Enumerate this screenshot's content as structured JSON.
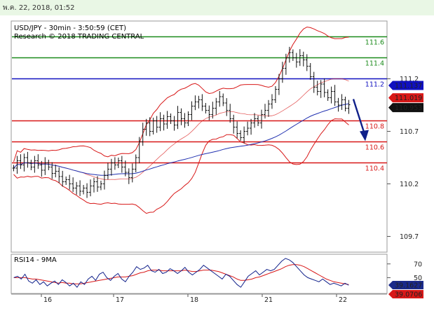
{
  "header": {
    "date_text": "พ.ค. 22, 2018, 01:52"
  },
  "chart_data": {
    "type": "candlestick",
    "title": "USD/JPY - 30min - 3:50:59 (CET)",
    "subtitle": "Research © 2018 TRADING CENTRAL",
    "x_tick_labels": [
      "16",
      "17",
      "18",
      "21",
      "22"
    ],
    "y_axis_ticks": [
      "111.2",
      "110.7",
      "110.2",
      "109.7"
    ],
    "ylim": [
      109.55,
      111.75
    ],
    "levels": [
      {
        "label": "111.6",
        "value": 111.6,
        "color": "#1a8a1a"
      },
      {
        "label": "111.4",
        "value": 111.4,
        "color": "#1a8a1a"
      },
      {
        "label": "111.2",
        "value": 111.2,
        "color": "#1010c0"
      },
      {
        "label": "110.8",
        "value": 110.8,
        "color": "#d81818"
      },
      {
        "label": "110.6",
        "value": 110.6,
        "color": "#d81818"
      },
      {
        "label": "110.4",
        "value": 110.4,
        "color": "#d81818"
      }
    ],
    "price_tags": [
      {
        "text": "111.137",
        "value": 111.137,
        "color": "#1010c0"
      },
      {
        "text": "111.019",
        "value": 111.019,
        "color": "#d81818"
      },
      {
        "text": "110.953",
        "value": 110.953,
        "color": "#111111"
      }
    ],
    "close_series": [
      110.35,
      110.42,
      110.38,
      110.45,
      110.4,
      110.36,
      110.42,
      110.38,
      110.33,
      110.4,
      110.36,
      110.3,
      110.32,
      110.27,
      110.22,
      110.24,
      110.2,
      110.16,
      110.18,
      110.13,
      110.16,
      110.12,
      110.18,
      110.22,
      110.17,
      110.2,
      110.28,
      110.34,
      110.4,
      110.38,
      110.42,
      110.36,
      110.31,
      110.26,
      110.34,
      110.45,
      110.6,
      110.72,
      110.78,
      110.7,
      110.8,
      110.74,
      110.82,
      110.77,
      110.84,
      110.8,
      110.76,
      110.88,
      110.82,
      110.78,
      110.86,
      110.94,
      110.98,
      111.0,
      110.94,
      110.9,
      110.86,
      110.92,
      110.98,
      111.03,
      110.97,
      110.9,
      110.82,
      110.74,
      110.68,
      110.64,
      110.7,
      110.73,
      110.78,
      110.82,
      110.78,
      110.86,
      110.9,
      110.96,
      111.0,
      111.1,
      111.2,
      111.3,
      111.4,
      111.45,
      111.4,
      111.36,
      111.42,
      111.38,
      111.32,
      111.22,
      111.12,
      111.08,
      111.15,
      111.07,
      111.02,
      111.08,
      110.98,
      110.95,
      111.0,
      110.92,
      110.953
    ],
    "rsi": {
      "label": "RSI14 - 9MA",
      "ticks": [
        "70",
        "50"
      ],
      "ylim": [
        28,
        82
      ],
      "values": [
        50,
        52,
        48,
        55,
        45,
        42,
        47,
        40,
        44,
        38,
        42,
        45,
        40,
        47,
        43,
        38,
        42,
        36,
        44,
        40,
        48,
        52,
        46,
        55,
        58,
        50,
        46,
        52,
        56,
        48,
        44,
        52,
        58,
        66,
        62,
        64,
        68,
        60,
        58,
        62,
        56,
        58,
        63,
        60,
        56,
        60,
        65,
        58,
        54,
        58,
        62,
        68,
        64,
        60,
        56,
        52,
        48,
        55,
        52,
        46,
        40,
        36,
        44,
        52,
        56,
        60,
        54,
        58,
        62,
        60,
        62,
        68,
        74,
        78,
        76,
        72,
        66,
        60,
        54,
        50,
        48,
        46,
        44,
        48,
        44,
        40,
        42,
        40,
        38,
        42,
        39
      ],
      "ma_values": [
        50,
        50,
        50,
        50,
        49,
        48,
        48,
        47,
        46,
        45,
        44,
        43,
        42,
        43,
        42,
        42,
        41,
        41,
        41,
        42,
        43,
        44,
        45,
        46,
        47,
        48,
        49,
        50,
        51,
        51,
        51,
        52,
        53,
        55,
        57,
        58,
        60,
        61,
        61,
        61,
        60,
        60,
        60,
        60,
        60,
        60,
        61,
        60,
        59,
        59,
        60,
        61,
        61,
        61,
        60,
        59,
        57,
        55,
        53,
        51,
        48,
        46,
        46,
        47,
        48,
        50,
        51,
        53,
        55,
        57,
        59,
        61,
        63,
        66,
        68,
        69,
        69,
        68,
        66,
        63,
        60,
        57,
        54,
        51,
        48,
        46,
        44,
        43,
        42,
        41,
        40
      ],
      "tags": [
        {
          "text": "39.1627",
          "value": 39.1627,
          "color": "#1a2a8a"
        },
        {
          "text": "39.0706",
          "value": 39.0706,
          "color": "#d81818"
        }
      ]
    }
  }
}
